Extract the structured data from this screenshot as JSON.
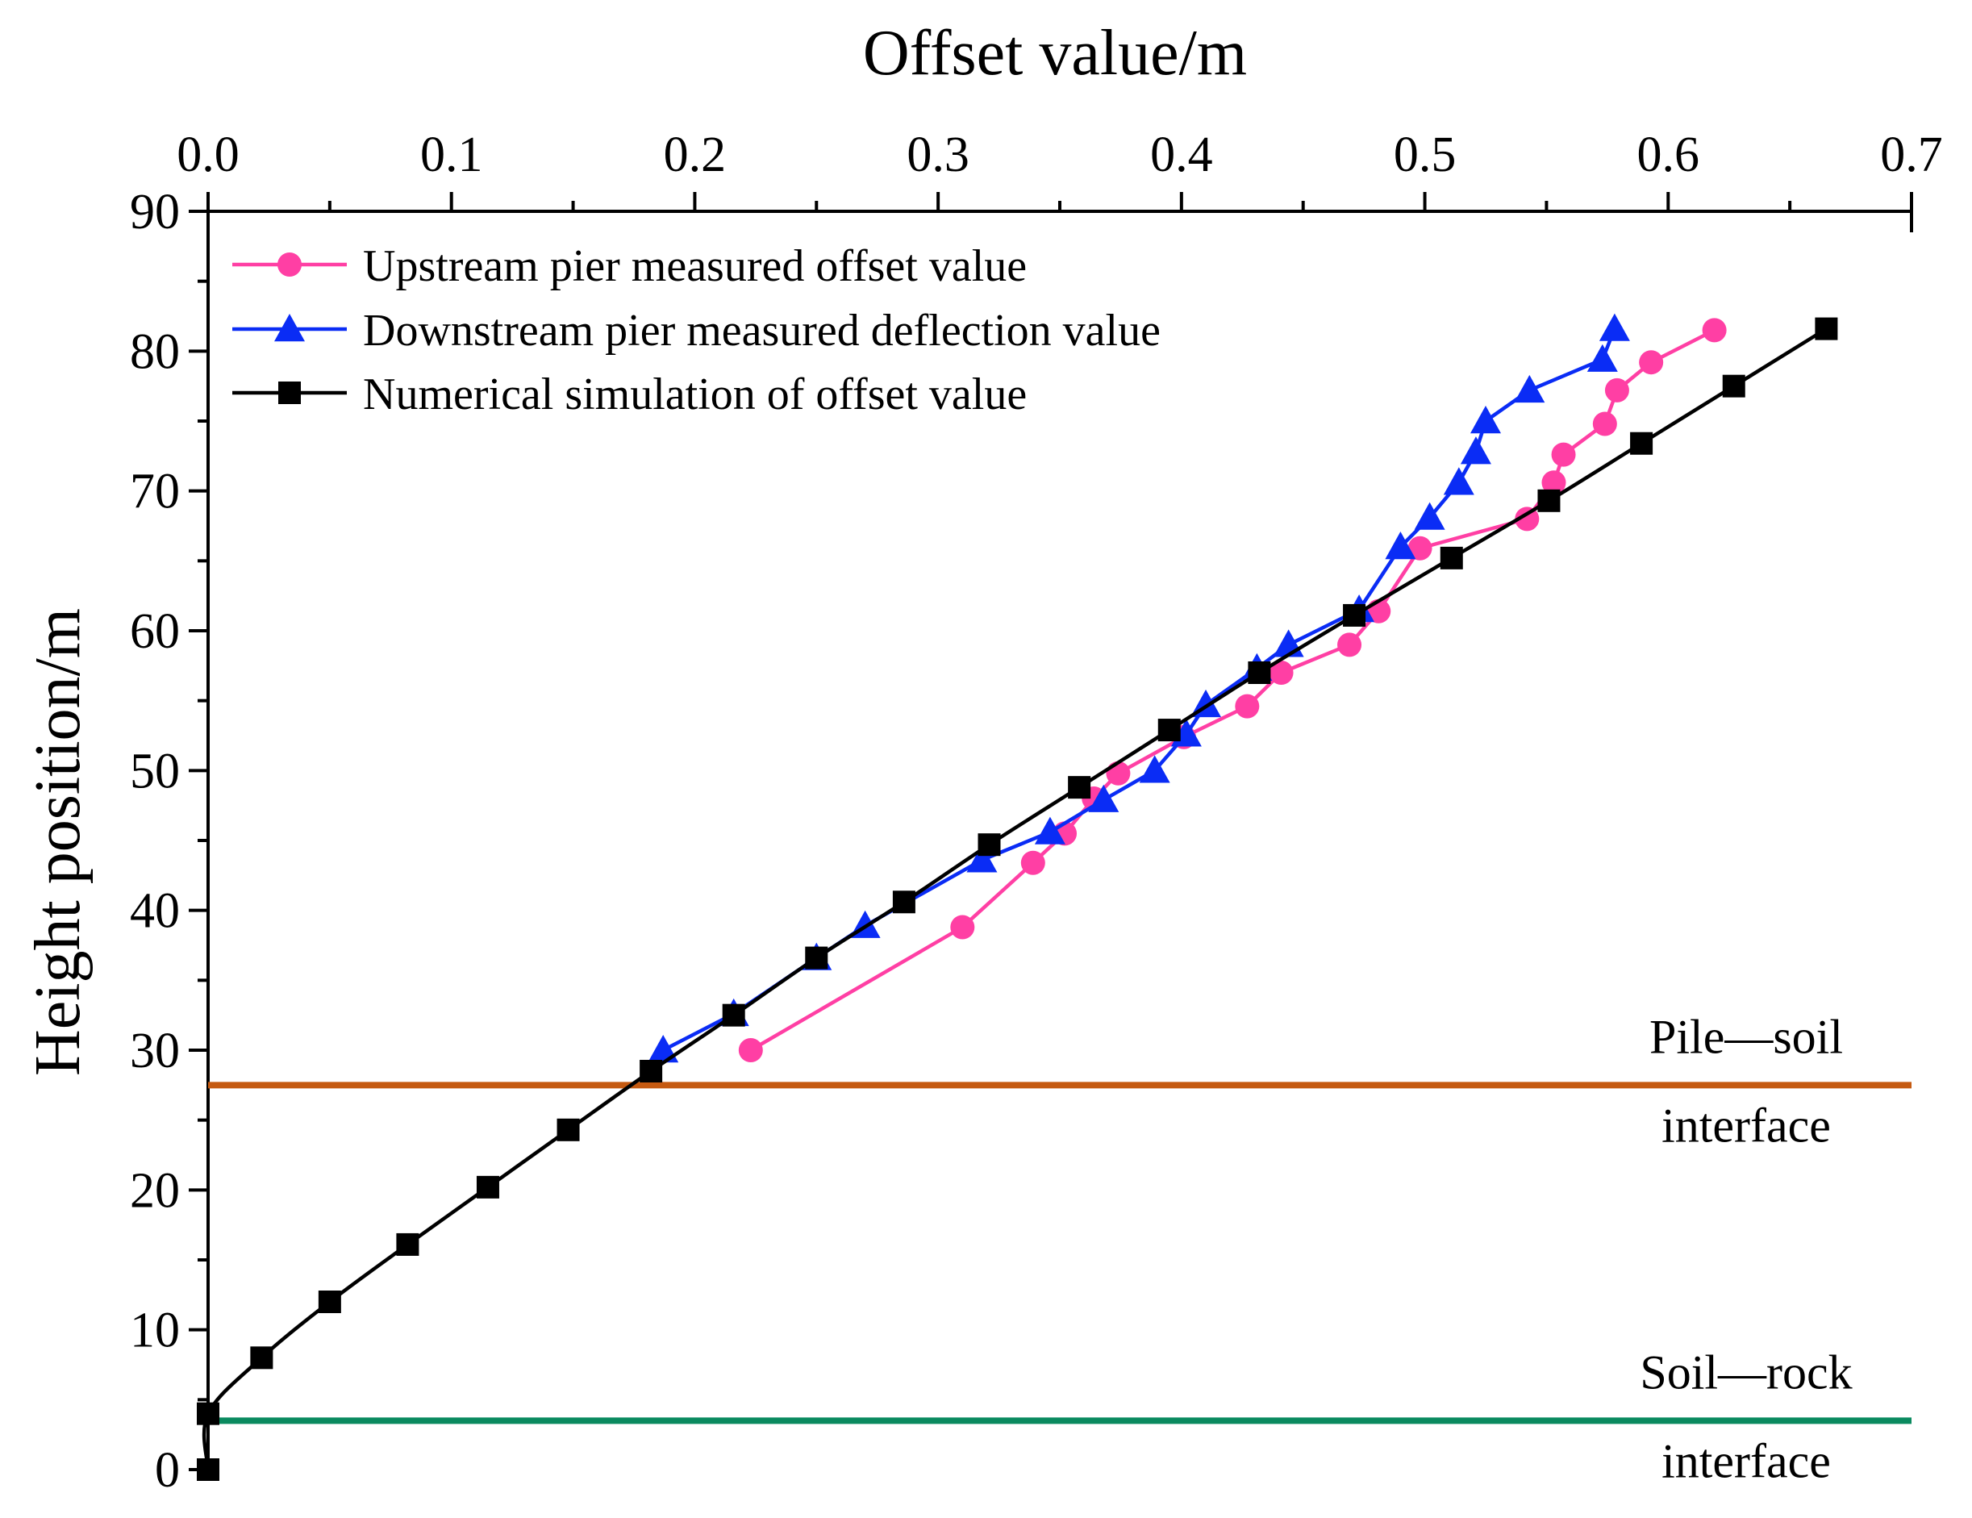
{
  "colors": {
    "upstream": "#ff3fa4",
    "downstream": "#0a2cf5",
    "simulation": "#000000",
    "pile_soil_line": "#c55a11",
    "soil_rock_line": "#0a8a5f"
  },
  "chart_data": {
    "type": "line",
    "title": "",
    "xlabel": "Offset value/m",
    "ylabel": "Height position/m",
    "x_axis_position": "top",
    "xlim": [
      0,
      0.7
    ],
    "ylim": [
      0,
      90
    ],
    "x_ticks": [
      "0.0",
      "0.1",
      "0.2",
      "0.3",
      "0.4",
      "0.5",
      "0.6",
      "0.7"
    ],
    "y_ticks": [
      "0",
      "10",
      "20",
      "30",
      "40",
      "50",
      "60",
      "70",
      "80",
      "90"
    ],
    "legend_position": "top-left",
    "series": [
      {
        "name": "Upstream pier measured offset value",
        "marker": "circle",
        "color_key": "upstream",
        "points": [
          [
            0.223,
            30.0
          ],
          [
            0.31,
            38.8
          ],
          [
            0.339,
            43.4
          ],
          [
            0.352,
            45.5
          ],
          [
            0.364,
            48.0
          ],
          [
            0.374,
            49.8
          ],
          [
            0.401,
            52.4
          ],
          [
            0.427,
            54.6
          ],
          [
            0.441,
            57.0
          ],
          [
            0.469,
            59.0
          ],
          [
            0.481,
            61.4
          ],
          [
            0.498,
            65.9
          ],
          [
            0.542,
            68.0
          ],
          [
            0.553,
            70.6
          ],
          [
            0.557,
            72.6
          ],
          [
            0.574,
            74.8
          ],
          [
            0.579,
            77.2
          ],
          [
            0.593,
            79.2
          ],
          [
            0.619,
            81.5
          ]
        ]
      },
      {
        "name": "Downstream pier  measured deflection value",
        "marker": "triangle",
        "color_key": "downstream",
        "points": [
          [
            0.187,
            30.0
          ],
          [
            0.216,
            32.6
          ],
          [
            0.25,
            36.6
          ],
          [
            0.27,
            38.9
          ],
          [
            0.318,
            43.6
          ],
          [
            0.346,
            45.6
          ],
          [
            0.368,
            47.9
          ],
          [
            0.389,
            50.0
          ],
          [
            0.402,
            52.6
          ],
          [
            0.41,
            54.7
          ],
          [
            0.431,
            57.3
          ],
          [
            0.444,
            59.0
          ],
          [
            0.473,
            61.5
          ],
          [
            0.49,
            66.0
          ],
          [
            0.502,
            68.1
          ],
          [
            0.514,
            70.6
          ],
          [
            0.521,
            72.8
          ],
          [
            0.525,
            75.0
          ],
          [
            0.543,
            77.2
          ],
          [
            0.573,
            79.4
          ],
          [
            0.578,
            81.6
          ]
        ]
      },
      {
        "name": "Numerical simulation of offset value",
        "marker": "square",
        "color_key": "simulation",
        "smooth": true,
        "points": [
          [
            0.0,
            0.0
          ],
          [
            0.0,
            4.0
          ],
          [
            0.022,
            8.0
          ],
          [
            0.05,
            12.0
          ],
          [
            0.082,
            16.1
          ],
          [
            0.115,
            20.2
          ],
          [
            0.148,
            24.3
          ],
          [
            0.182,
            28.5
          ],
          [
            0.216,
            32.5
          ],
          [
            0.25,
            36.6
          ],
          [
            0.286,
            40.6
          ],
          [
            0.321,
            44.7
          ],
          [
            0.358,
            48.8
          ],
          [
            0.395,
            52.9
          ],
          [
            0.432,
            57.0
          ],
          [
            0.471,
            61.1
          ],
          [
            0.511,
            65.2
          ],
          [
            0.551,
            69.3
          ],
          [
            0.589,
            73.4
          ],
          [
            0.627,
            77.5
          ],
          [
            0.665,
            81.6
          ]
        ]
      }
    ],
    "reference_lines": [
      {
        "label_line1": "Pile—soil",
        "label_line2": "interface",
        "y": 27.5,
        "color_key": "pile_soil_line"
      },
      {
        "label_line1": "Soil—rock",
        "label_line2": "interface",
        "y": 3.5,
        "color_key": "soil_rock_line"
      }
    ]
  }
}
